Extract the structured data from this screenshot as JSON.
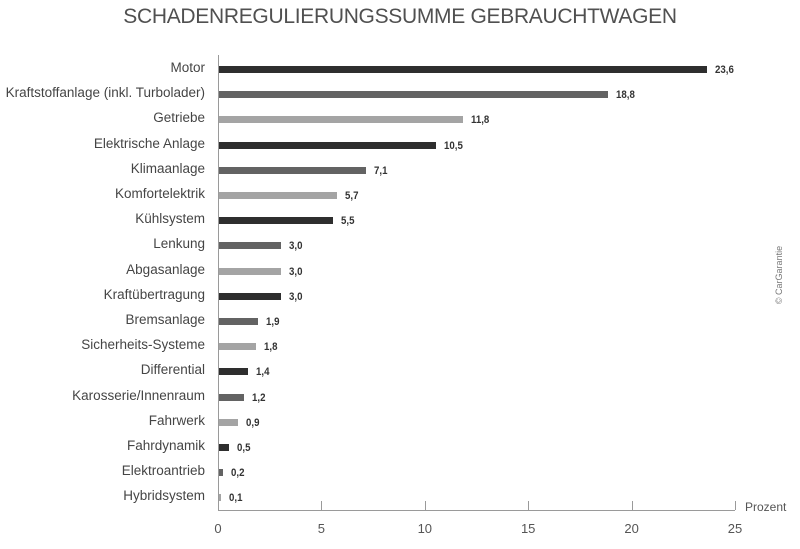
{
  "title": "SCHADENREGULIERUNGSSUMME GEBRAUCHTWAGEN",
  "x_unit_label": "Prozent",
  "copyright": "© CarGarantie",
  "colors": {
    "dark": "#2e2e2e",
    "mid": "#636363",
    "light": "#a4a4a4",
    "axis": "#9a9a9a"
  },
  "chart_data": {
    "type": "bar",
    "orientation": "horizontal",
    "title": "SCHADENREGULIERUNGSSUMME GEBRAUCHTWAGEN",
    "xlabel": "Prozent",
    "ylabel": "",
    "xlim": [
      0,
      25
    ],
    "xticks": [
      0,
      5,
      10,
      15,
      20,
      25
    ],
    "grid": false,
    "legend": null,
    "categories": [
      "Motor",
      "Kraftstoffanlage (inkl. Turbolader)",
      "Getriebe",
      "Elektrische Anlage",
      "Klimaanlage",
      "Komfortelektrik",
      "Kühlsystem",
      "Lenkung",
      "Abgasanlage",
      "Kraftübertragung",
      "Bremsanlage",
      "Sicherheits-Systeme",
      "Differential",
      "Karosserie/Innenraum",
      "Fahrwerk",
      "Fahrdynamik",
      "Elektroantrieb",
      "Hybridsystem"
    ],
    "values": [
      23.6,
      18.8,
      11.8,
      10.5,
      7.1,
      5.7,
      5.5,
      3.0,
      3.0,
      3.0,
      1.9,
      1.8,
      1.4,
      1.2,
      0.9,
      0.5,
      0.2,
      0.1
    ],
    "value_labels": [
      "23,6",
      "18,8",
      "11,8",
      "10,5",
      "7,1",
      "5,7",
      "5,5",
      "3,0",
      "3,0",
      "3,0",
      "1,9",
      "1,8",
      "1,4",
      "1,2",
      "0,9",
      "0,5",
      "0,2",
      "0,1"
    ],
    "bar_color_cycle": [
      "dark",
      "mid",
      "light"
    ],
    "annotations": [
      "© CarGarantie"
    ]
  }
}
